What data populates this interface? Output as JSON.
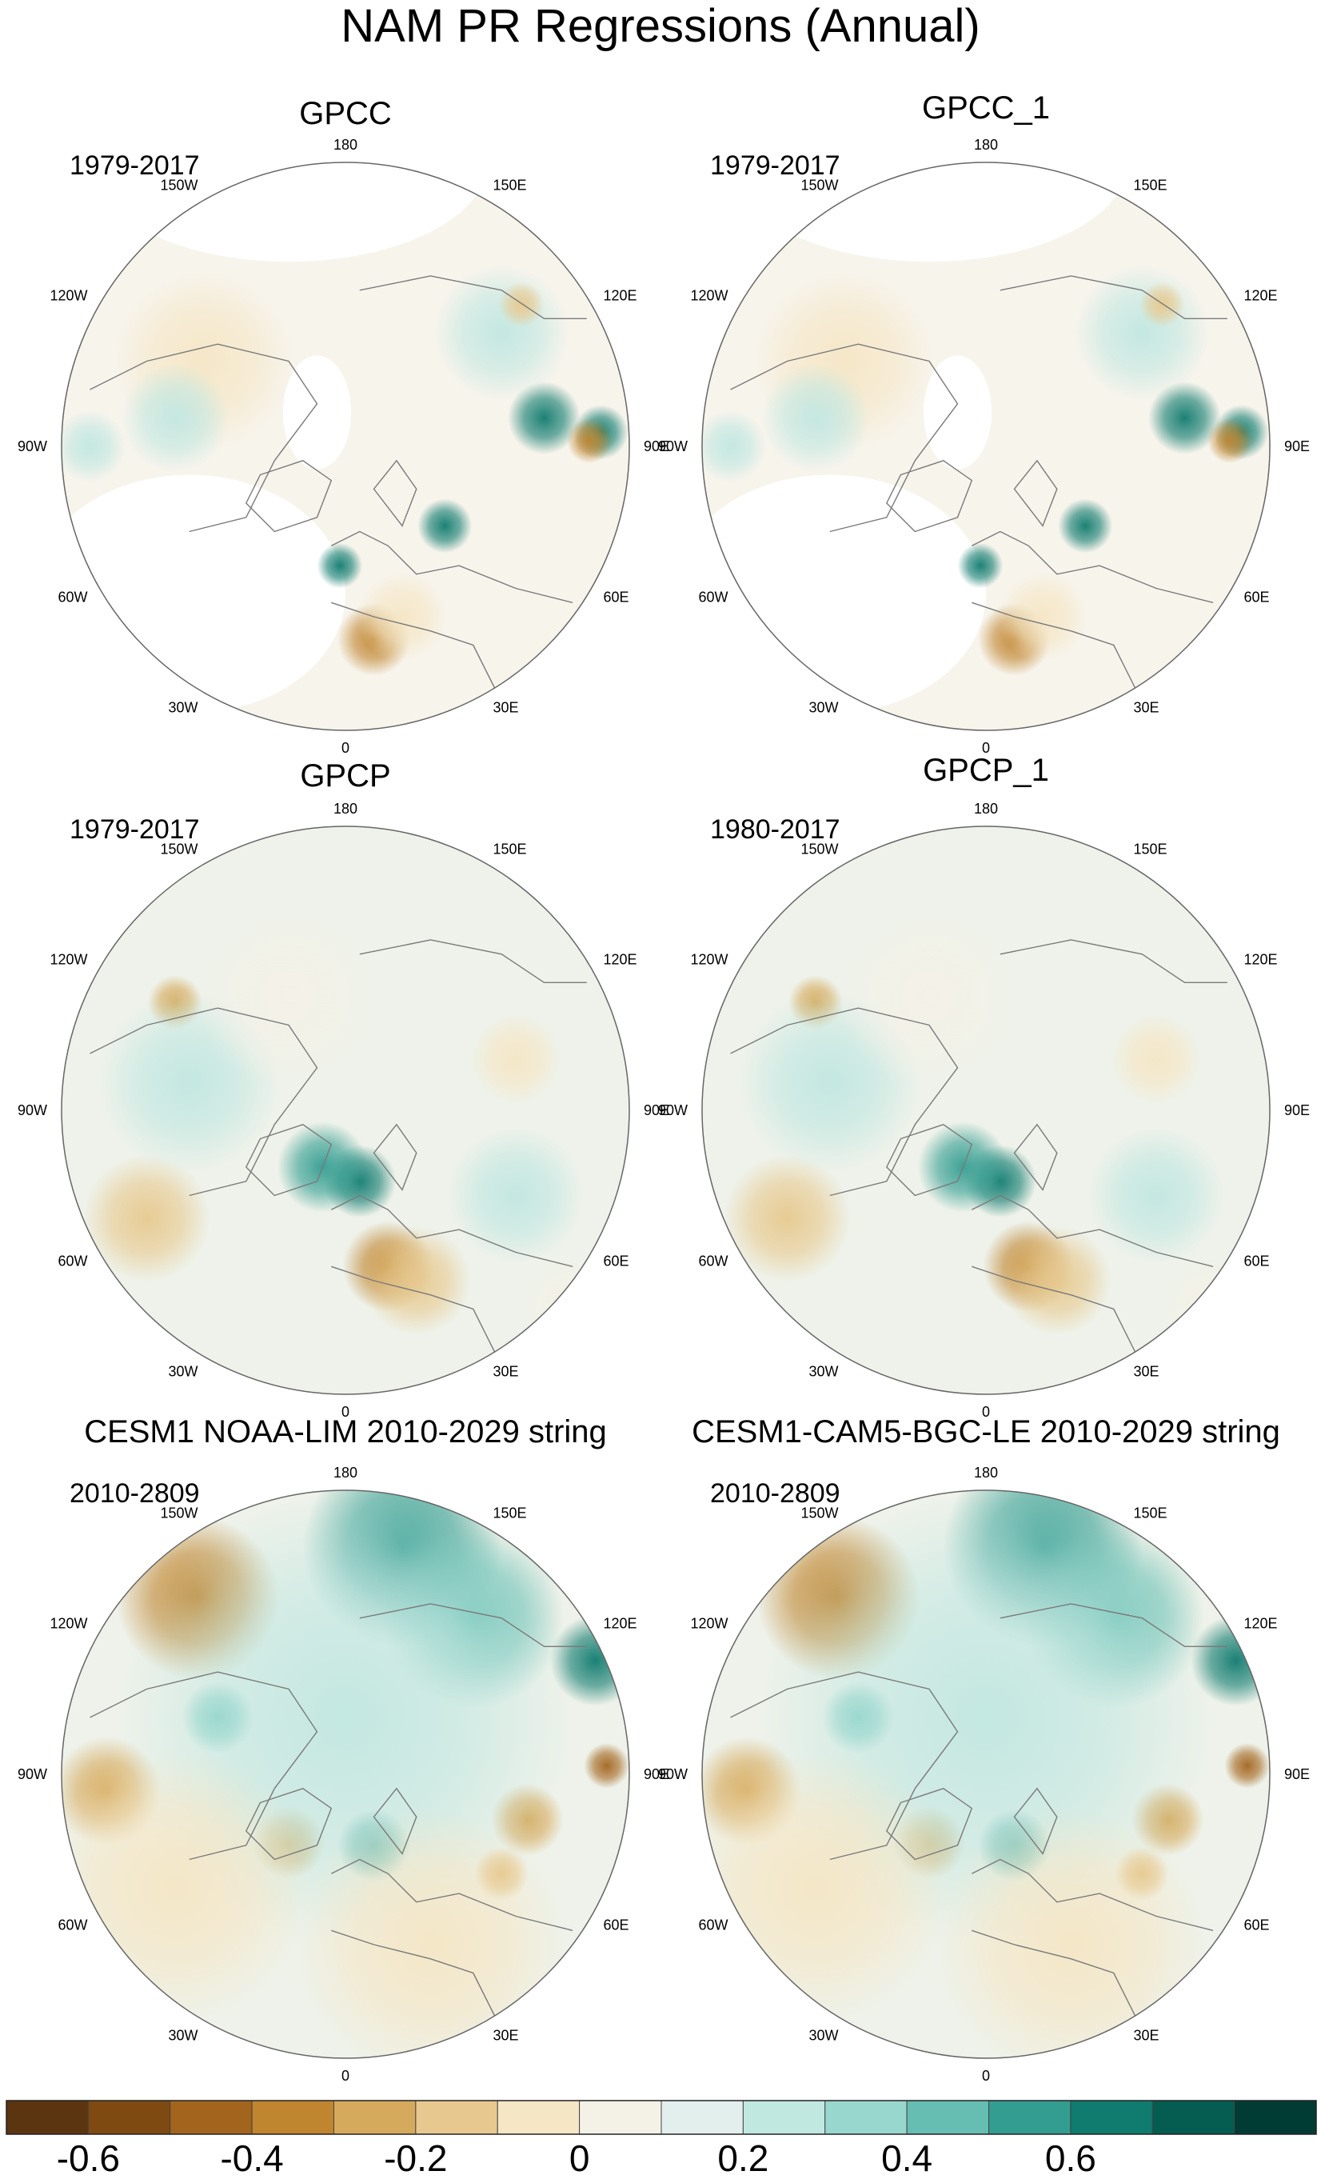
{
  "figure_title": "NAM PR Regressions (Annual)",
  "lon_labels": [
    "180",
    "150E",
    "120E",
    "90E",
    "60E",
    "30E",
    "0",
    "30W",
    "60W",
    "90W",
    "120W",
    "150W"
  ],
  "panels": [
    {
      "title": "GPCC",
      "period": "1979-2017",
      "pattern": "obs_gpcc",
      "masked": true
    },
    {
      "title": "GPCC_1",
      "period": "1979-2017",
      "pattern": "obs_gpcc",
      "masked": true
    },
    {
      "title": "GPCP",
      "period": "1979-2017",
      "pattern": "obs_gpcp",
      "masked": false
    },
    {
      "title": "GPCP_1",
      "period": "1980-2017",
      "pattern": "obs_gpcp",
      "masked": false
    },
    {
      "title": "CESM1 NOAA-LIM 2010-2029 string",
      "period": "2010-2809",
      "pattern": "model",
      "masked": false
    },
    {
      "title": "CESM1-CAM5-BGC-LE 2010-2029 string",
      "period": "2010-2809",
      "pattern": "model",
      "masked": false
    }
  ],
  "colorbar": {
    "colors": [
      "#5b3510",
      "#7e4a12",
      "#a3651e",
      "#c0852f",
      "#d6aa5c",
      "#e7c98f",
      "#f5e6c5",
      "#f4f1e7",
      "#e2efed",
      "#c1e7e1",
      "#98d7cd",
      "#65beb1",
      "#339d91",
      "#107b6f",
      "#055c50",
      "#003c33"
    ],
    "tick_labels": [
      "-0.6",
      "-0.4",
      "-0.2",
      "0",
      "0.2",
      "0.4",
      "0.6"
    ]
  },
  "chart_data": {
    "type": "heatmap",
    "title": "NAM PR Regressions (Annual)",
    "projection": "north polar stereographic",
    "value_range": [
      -0.7,
      0.7
    ],
    "levels": [
      -0.7,
      -0.6,
      -0.5,
      -0.4,
      -0.3,
      -0.2,
      -0.1,
      0,
      0.1,
      0.2,
      0.3,
      0.4,
      0.5,
      0.6,
      0.7
    ],
    "colorbar_ticks": [
      -0.6,
      -0.4,
      -0.2,
      0,
      0.2,
      0.4,
      0.6
    ]
  }
}
